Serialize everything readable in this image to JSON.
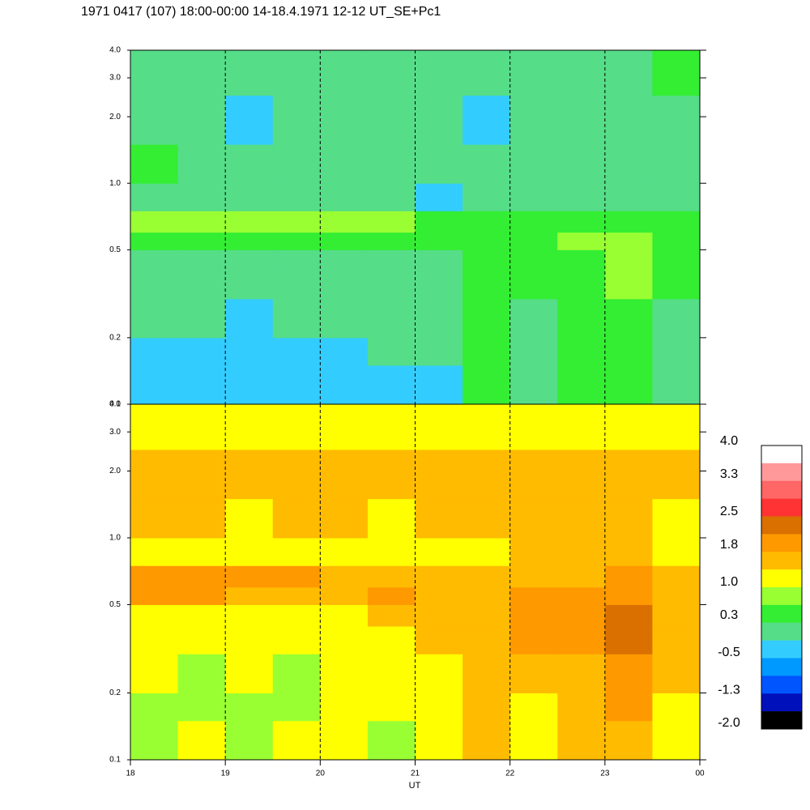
{
  "chart_data": {
    "type": "heatmap",
    "title": "1971 0417 (107) 18:00-00:00 14-18.4.1971  12-12 UT_SE+Pc1",
    "xlabel": "UT",
    "xlim": [
      18,
      24
    ],
    "xticks": [
      18,
      19,
      20,
      21,
      22,
      23,
      {
        "value": 24,
        "label": "00"
      }
    ],
    "ylim": [
      0.1,
      4
    ],
    "yticks": [
      0.1,
      0.2,
      0.5,
      {
        "value": 1,
        "label": "1.0"
      },
      {
        "value": 2,
        "label": "2.0"
      },
      {
        "value": 3,
        "label": "3.0"
      },
      {
        "value": 4,
        "label": "4.0"
      }
    ],
    "log_y": true,
    "grid_x": true,
    "x_edges": [
      18,
      18.5,
      19,
      19.5,
      20,
      20.5,
      21,
      21.5,
      22,
      22.5,
      23,
      23.5,
      24
    ],
    "y_edges": [
      0.1,
      0.15,
      0.2,
      0.3,
      0.4,
      0.5,
      0.6,
      0.75,
      1,
      1.5,
      2.5,
      4
    ],
    "panels": [
      {
        "values": [
          [
            -0.5,
            -0.5,
            -0.5,
            -0.5,
            -0.5,
            -0.5,
            -0.5,
            0.3,
            0,
            0.3,
            0.3,
            0
          ],
          [
            -0.5,
            -0.5,
            -0.5,
            -0.5,
            -0.5,
            0,
            0,
            0.3,
            0,
            0.3,
            0.3,
            0
          ],
          [
            0,
            0,
            -0.5,
            0,
            0,
            0,
            0,
            0.3,
            0,
            0.3,
            0.3,
            0
          ],
          [
            0,
            0,
            0,
            0,
            0,
            0,
            0,
            0.3,
            0.3,
            0.3,
            0.7,
            0.3
          ],
          [
            0,
            0,
            0,
            0,
            0,
            0,
            0,
            0.3,
            0.3,
            0.3,
            0.7,
            0.3
          ],
          [
            0.3,
            0.3,
            0.3,
            0.3,
            0.3,
            0.3,
            0.3,
            0.3,
            0.3,
            0.7,
            0.7,
            0.3
          ],
          [
            0.7,
            0.7,
            0.7,
            0.7,
            0.7,
            0.7,
            0.3,
            0.3,
            0.3,
            0.3,
            0.3,
            0.3
          ],
          [
            0,
            0,
            0,
            0,
            0,
            0,
            -0.5,
            0,
            0,
            0,
            0,
            0
          ],
          [
            0.3,
            0,
            0,
            0,
            0,
            0,
            0,
            0,
            0,
            0,
            0,
            0
          ],
          [
            0,
            0,
            -0.5,
            0,
            0,
            0,
            0,
            -0.5,
            0,
            0,
            0,
            0
          ],
          [
            0,
            0,
            0,
            0,
            0,
            0,
            0,
            0,
            0,
            0,
            0,
            0.3
          ]
        ]
      },
      {
        "values": [
          [
            0.7,
            1.1,
            0.7,
            1.1,
            1.1,
            0.7,
            1.1,
            1.5,
            1.1,
            1.5,
            1.5,
            1.1
          ],
          [
            0.7,
            0.7,
            0.7,
            0.7,
            1.1,
            1.1,
            1.1,
            1.5,
            1.1,
            1.5,
            1.85,
            1.1
          ],
          [
            1.1,
            0.7,
            1.1,
            0.7,
            1.1,
            1.1,
            1.1,
            1.5,
            1.5,
            1.5,
            1.85,
            1.5
          ],
          [
            1.1,
            1.1,
            1.1,
            1.1,
            1.1,
            1.1,
            1.5,
            1.5,
            1.85,
            1.85,
            2.2,
            1.5
          ],
          [
            1.1,
            1.1,
            1.1,
            1.1,
            1.1,
            1.5,
            1.5,
            1.5,
            1.85,
            1.85,
            2.2,
            1.5
          ],
          [
            1.85,
            1.85,
            1.5,
            1.5,
            1.5,
            1.85,
            1.5,
            1.5,
            1.85,
            1.85,
            1.85,
            1.5
          ],
          [
            1.85,
            1.85,
            1.85,
            1.85,
            1.5,
            1.5,
            1.5,
            1.5,
            1.5,
            1.5,
            1.85,
            1.5
          ],
          [
            1.1,
            1.1,
            1.1,
            1.1,
            1.1,
            1.1,
            1.1,
            1.1,
            1.5,
            1.5,
            1.5,
            1.1
          ],
          [
            1.5,
            1.5,
            1.1,
            1.5,
            1.5,
            1.1,
            1.5,
            1.5,
            1.5,
            1.5,
            1.5,
            1.1
          ],
          [
            1.5,
            1.5,
            1.5,
            1.5,
            1.5,
            1.5,
            1.5,
            1.5,
            1.5,
            1.5,
            1.5,
            1.5
          ],
          [
            1.1,
            1.1,
            1.1,
            1.1,
            1.1,
            1.1,
            1.1,
            1.1,
            1.1,
            1.1,
            1.1,
            1.1
          ]
        ]
      }
    ],
    "colorbar": {
      "colors": [
        "#ffffff",
        "#ff9999",
        "#ff6666",
        "#ff3333",
        "#d97000",
        "#ff9900",
        "#ffbb00",
        "#ffff00",
        "#99ff33",
        "#33ee33",
        "#55dd88",
        "#33ccff",
        "#0099ff",
        "#0055ff",
        "#0011bb",
        "#000000"
      ],
      "ticks": [
        {
          "value": 4,
          "label": "4.0"
        },
        3.3,
        2.5,
        1.8,
        {
          "value": 1,
          "label": "1.0"
        },
        0.3,
        -0.5,
        -1.3,
        {
          "value": -2,
          "label": "-2.0"
        }
      ]
    }
  }
}
